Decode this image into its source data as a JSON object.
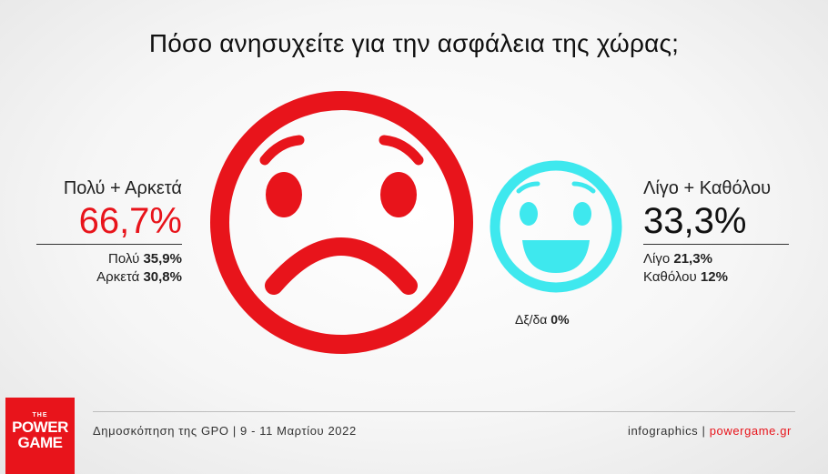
{
  "chart_data": {
    "type": "infographic",
    "title": "Πόσο ανησυχείτε για την ασφάλεια της χώρας;",
    "groups": [
      {
        "label": "Πολύ + Αρκετά",
        "total": "66,7%",
        "value": 66.7,
        "color": "#e8141b",
        "icon": "sad-face-icon",
        "breakdown": [
          {
            "label": "Πολύ",
            "value_text": "35,9%",
            "value": 35.9
          },
          {
            "label": "Αρκετά",
            "value_text": "30,8%",
            "value": 30.8
          }
        ]
      },
      {
        "label": "Λίγο + Καθόλου",
        "total": "33,3%",
        "value": 33.3,
        "color": "#3ee8ee",
        "icon": "happy-face-icon",
        "breakdown": [
          {
            "label": "Λίγο",
            "value_text": "21,3%",
            "value": 21.3
          },
          {
            "label": "Καθόλου",
            "value_text": "12%",
            "value": 12
          }
        ]
      }
    ],
    "dont_know": {
      "label": "Δξ/δα",
      "value_text": "0%",
      "value": 0
    }
  },
  "footer": {
    "source": "Δημοσκόπηση της GPO | 9 - 11 Μαρτίου 2022",
    "infographics_label": "infographics | ",
    "brand_url": "powergame.gr"
  },
  "logo": {
    "line_the": "THE",
    "line1": "POWER",
    "line2": "GAME"
  },
  "colors": {
    "accent_red": "#e8141b",
    "accent_cyan": "#3ee8ee"
  }
}
